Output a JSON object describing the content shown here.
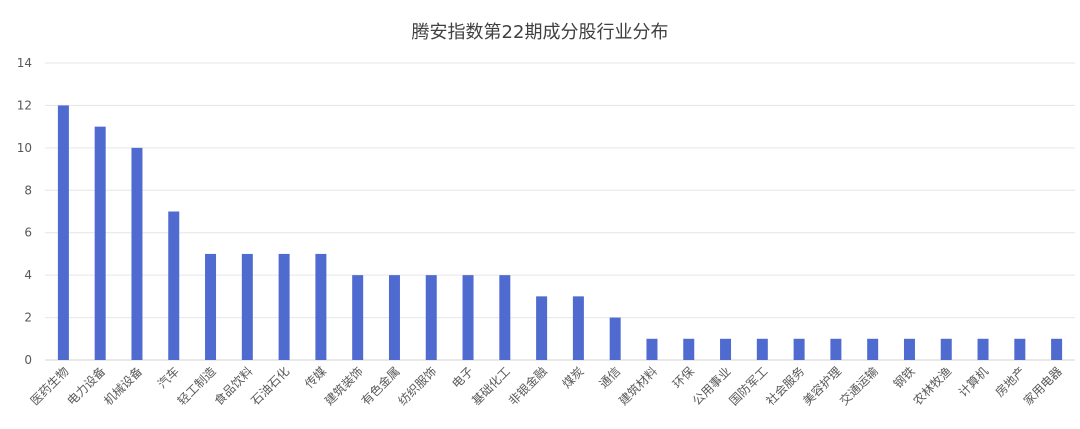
{
  "chart_data": {
    "type": "bar",
    "title": "腾安指数第22期成分股行业分布",
    "categories": [
      "医药生物",
      "电力设备",
      "机械设备",
      "汽车",
      "轻工制造",
      "食品饮料",
      "石油石化",
      "传媒",
      "建筑装饰",
      "有色金属",
      "纺织服饰",
      "电子",
      "基础化工",
      "非银金融",
      "煤炭",
      "通信",
      "建筑材料",
      "环保",
      "公用事业",
      "国防军工",
      "社会服务",
      "美容护理",
      "交通运输",
      "钢铁",
      "农林牧渔",
      "计算机",
      "房地产",
      "家用电器"
    ],
    "values": [
      12,
      11,
      10,
      7,
      5,
      5,
      5,
      5,
      4,
      4,
      4,
      4,
      4,
      3,
      3,
      2,
      1,
      1,
      1,
      1,
      1,
      1,
      1,
      1,
      1,
      1,
      1,
      1
    ],
    "xlabel": "",
    "ylabel": "",
    "ylim": [
      0,
      14
    ],
    "yticks": [
      "0",
      "2",
      "4",
      "6",
      "8",
      "10",
      "12",
      "14"
    ],
    "grid": true,
    "bar_color": "#4f6bd0",
    "grid_color": "#e6e6e6"
  }
}
